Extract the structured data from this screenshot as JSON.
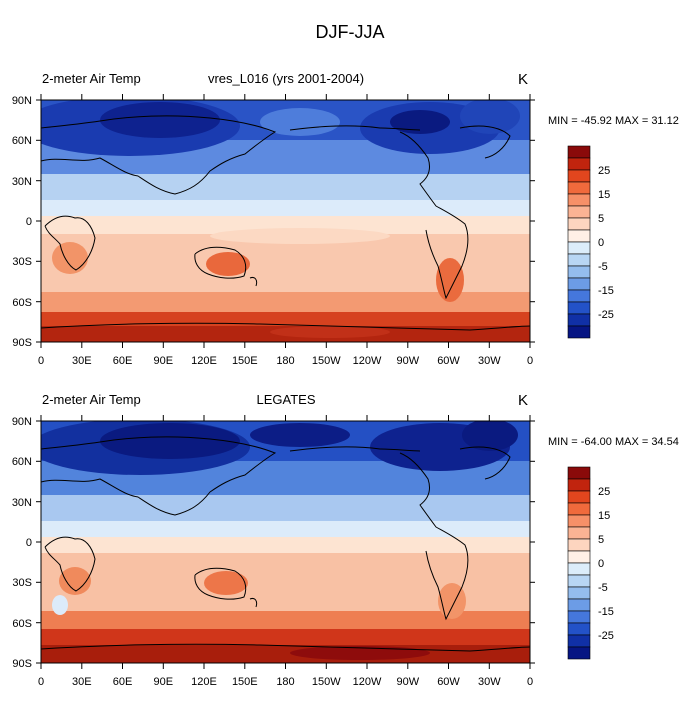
{
  "title": "DJF-JJA",
  "panels": [
    {
      "left_label": "2-meter Air Temp",
      "center_label": "vres_L016 (yrs 2001-2004)",
      "units": "K",
      "minmax": "MIN = -45.92 MAX =  31.12"
    },
    {
      "left_label": "2-meter Air Temp",
      "center_label": "LEGATES",
      "units": "K",
      "minmax": "MIN = -64.00 MAX =  34.54"
    }
  ],
  "lat_ticks": [
    "90N",
    "60N",
    "30N",
    "0",
    "30S",
    "60S",
    "90S"
  ],
  "lon_ticks": [
    "0",
    "30E",
    "60E",
    "90E",
    "120E",
    "150E",
    "180",
    "150W",
    "120W",
    "90W",
    "60W",
    "30W",
    "0"
  ],
  "colorbar": {
    "labels": [
      "25",
      "15",
      "5",
      "0",
      "-5",
      "-15",
      "-25"
    ],
    "colors": [
      "#8a0a0a",
      "#c1240e",
      "#e2461e",
      "#f06a3c",
      "#f69068",
      "#fab394",
      "#fdd5bf",
      "#fff0e6",
      "#dcedfa",
      "#b8d6f4",
      "#94bdee",
      "#6c9ce6",
      "#4577dc",
      "#2352c8",
      "#1030a6",
      "#061583"
    ]
  },
  "palette": {
    "deep_blue": "#0a1e8c",
    "mid_blue": "#3f6fd8",
    "light_blue": "#a9c8f0",
    "pale_blue": "#dcebfa",
    "pale_orange": "#fde0cc",
    "salmon": "#f6b89a",
    "orange": "#ee7e52",
    "red": "#d0361a",
    "dark_red": "#8e0c0c"
  }
}
